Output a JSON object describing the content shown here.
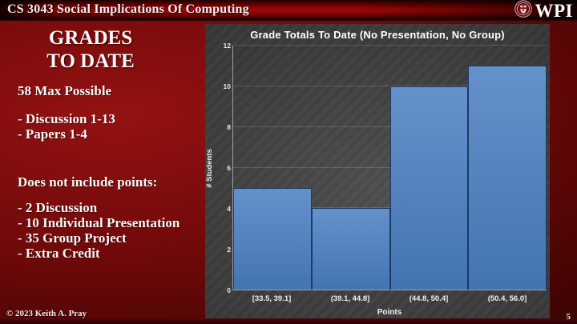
{
  "header": {
    "title": "CS 3043 Social Implications Of Computing",
    "logo_text": "WPI"
  },
  "sidebar": {
    "title_line1": "GRADES",
    "title_line2": "TO DATE",
    "max_possible": "58 Max Possible",
    "included": [
      "- Discussion 1-13",
      "- Papers 1-4"
    ],
    "excluded_heading": "Does not include points:",
    "excluded": [
      "- 2 Discussion",
      "- 10 Individual Presentation",
      "- 35 Group Project",
      "- Extra Credit"
    ]
  },
  "chart_data": {
    "type": "bar",
    "title": "Grade Totals To Date (No Presentation, No Group)",
    "categories": [
      "[33.5, 39.1]",
      "(39.1, 44.8]",
      "(44.8, 50.4]",
      "(50.4, 56.0]"
    ],
    "values": [
      5,
      4,
      10,
      11
    ],
    "xlabel": "Points",
    "ylabel": "# Students",
    "ylim": [
      0,
      12
    ],
    "yticks": [
      0,
      2,
      4,
      6,
      8,
      10,
      12
    ],
    "grid": true,
    "legend": "none",
    "bar_color_top": "#6591cb",
    "bar_color_bottom": "#4374b2",
    "bar_border_color": "#1b3a66",
    "panel_bg": "#3f3f3f"
  },
  "footer": {
    "copyright": "© 2023 Keith A. Pray",
    "page_number": "5"
  }
}
